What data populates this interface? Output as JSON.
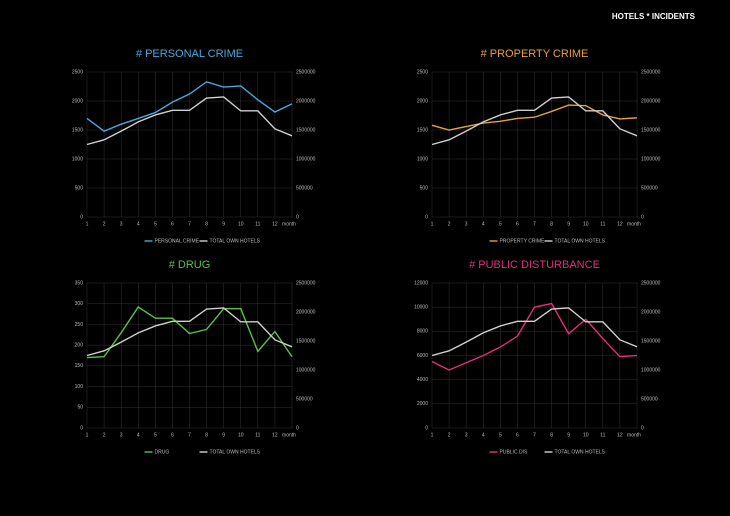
{
  "header": {
    "title": "HOTELS * INCIDENTS"
  },
  "chart_data": [
    {
      "type": "line",
      "title": "# PERSONAL CRIME",
      "xlabel": "month",
      "categories": [
        1,
        2,
        3,
        4,
        5,
        6,
        7,
        8,
        9,
        10,
        11,
        12,
        null
      ],
      "ylim": [
        0,
        2500
      ],
      "yticks": [
        0,
        500,
        1000,
        1500,
        2000,
        2500
      ],
      "y2lim": [
        0,
        2500000
      ],
      "y2ticks": [
        0,
        500000,
        1000000,
        1500000,
        2000000,
        2500000
      ],
      "grid": true,
      "series": [
        {
          "name": "PERSONAL CRIME",
          "color": "#4aa8dc",
          "values": [
            1700,
            1480,
            1600,
            1700,
            1800,
            1980,
            2120,
            2330,
            2240,
            2260,
            2020,
            1810,
            1950
          ]
        },
        {
          "name": "TOTAL OWN HOTELS",
          "color": "#d0d0d0",
          "axis": "y2",
          "values": [
            1250000,
            1330000,
            1480000,
            1640000,
            1760000,
            1840000,
            1840000,
            2050000,
            2070000,
            1830000,
            1830000,
            1520000,
            1400000
          ]
        }
      ]
    },
    {
      "type": "line",
      "title": "# PROPERTY CRIME",
      "xlabel": "month",
      "categories": [
        1,
        2,
        3,
        4,
        5,
        6,
        7,
        8,
        9,
        10,
        11,
        12,
        null
      ],
      "ylim": [
        0,
        2500
      ],
      "yticks": [
        0,
        500,
        1000,
        1500,
        2000,
        2500
      ],
      "y2lim": [
        0,
        2500000
      ],
      "y2ticks": [
        0,
        500000,
        1000000,
        1500000,
        2000000,
        2500000
      ],
      "grid": true,
      "series": [
        {
          "name": "PROPERTY CRIME",
          "color": "#e8a23a",
          "values": [
            1580,
            1500,
            1560,
            1620,
            1650,
            1700,
            1720,
            1820,
            1930,
            1920,
            1760,
            1690,
            1710
          ]
        },
        {
          "name": "TOTAL OWN HOTELS",
          "color": "#d0d0d0",
          "axis": "y2",
          "values": [
            1250000,
            1330000,
            1480000,
            1640000,
            1760000,
            1840000,
            1840000,
            2050000,
            2070000,
            1830000,
            1830000,
            1520000,
            1400000
          ]
        }
      ]
    },
    {
      "type": "line",
      "title": "# DRUG",
      "xlabel": "month",
      "categories": [
        1,
        2,
        3,
        4,
        5,
        6,
        7,
        8,
        9,
        10,
        11,
        12,
        null
      ],
      "ylim": [
        0,
        350
      ],
      "yticks": [
        0,
        50,
        100,
        150,
        200,
        250,
        300,
        350
      ],
      "y2lim": [
        0,
        2500000
      ],
      "y2ticks": [
        0,
        500000,
        1000000,
        1500000,
        2000000,
        2500000
      ],
      "grid": true,
      "series": [
        {
          "name": "DRUG",
          "color": "#5cc04a",
          "values": [
            170,
            172,
            230,
            292,
            265,
            265,
            228,
            238,
            288,
            288,
            185,
            233,
            172
          ]
        },
        {
          "name": "TOTAL OWN HOTELS",
          "color": "#d0d0d0",
          "axis": "y2",
          "values": [
            1250000,
            1330000,
            1480000,
            1640000,
            1760000,
            1840000,
            1840000,
            2050000,
            2070000,
            1830000,
            1830000,
            1520000,
            1400000
          ]
        }
      ]
    },
    {
      "type": "line",
      "title": "# PUBLIC DISTURBANCE",
      "xlabel": "month",
      "categories": [
        1,
        2,
        3,
        4,
        5,
        6,
        7,
        8,
        9,
        10,
        11,
        12,
        null
      ],
      "ylim": [
        0,
        12000
      ],
      "yticks": [
        0,
        2000,
        4000,
        6000,
        8000,
        10000,
        12000
      ],
      "y2lim": [
        0,
        2500000
      ],
      "y2ticks": [
        0,
        500000,
        1000000,
        1500000,
        2000000,
        2500000
      ],
      "grid": true,
      "series": [
        {
          "name": "PUBLIC DIS",
          "color": "#e0307a",
          "values": [
            5500,
            4800,
            5400,
            6000,
            6700,
            7600,
            10000,
            10300,
            7800,
            9000,
            7400,
            5900,
            6000
          ]
        },
        {
          "name": "TOTAL OWN HOTELS",
          "color": "#d0d0d0",
          "axis": "y2",
          "values": [
            1250000,
            1330000,
            1480000,
            1640000,
            1760000,
            1840000,
            1840000,
            2050000,
            2070000,
            1830000,
            1830000,
            1520000,
            1400000
          ]
        }
      ]
    }
  ]
}
